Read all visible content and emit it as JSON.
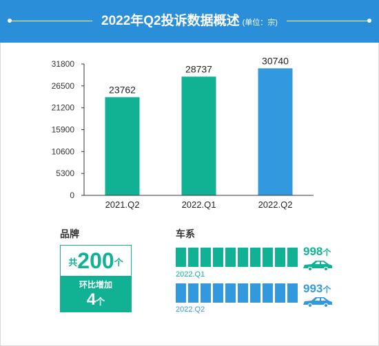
{
  "header": {
    "title": "2022年Q2投诉数据概述",
    "unit": "(单位：宗)"
  },
  "chart_data": {
    "type": "bar",
    "categories": [
      "2021.Q2",
      "2022.Q1",
      "2022.Q2"
    ],
    "values": [
      23762,
      28737,
      30740
    ],
    "value_labels": [
      "23762",
      "28737",
      "30740"
    ],
    "y_ticks": [
      "0",
      "5300",
      "10600",
      "15900",
      "21200",
      "26500",
      "31800"
    ],
    "ylim": [
      0,
      31800
    ],
    "bar_colors": [
      "#11b294",
      "#11b294",
      "#3399de"
    ],
    "grid": false
  },
  "brand": {
    "title": "品牌",
    "prefix": "共",
    "total": "200",
    "total_unit": "个",
    "change_label": "环比增加",
    "change_value": "4",
    "change_unit": "个",
    "color": "#11b294"
  },
  "series": {
    "title": "车系",
    "rows": [
      {
        "period": "2022.Q1",
        "count": "998",
        "unit": "个",
        "color": "#11b294",
        "icon": "car-icon"
      },
      {
        "period": "2022.Q2",
        "count": "993",
        "unit": "个",
        "color": "#3399de",
        "icon": "car-icon"
      }
    ]
  }
}
